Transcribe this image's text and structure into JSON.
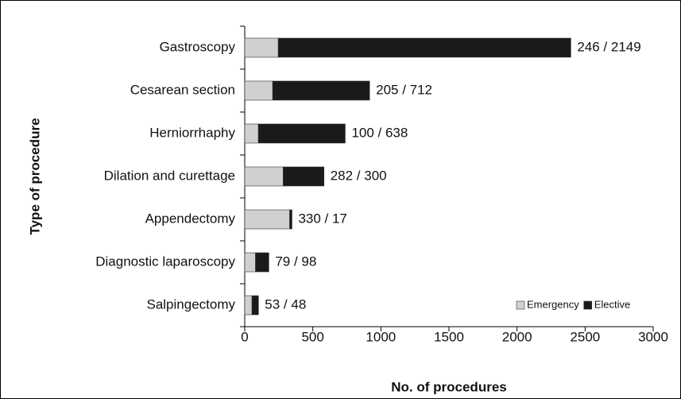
{
  "chart_data": {
    "type": "bar",
    "orientation": "horizontal",
    "stacked": true,
    "x_label": "No. of procedures",
    "y_label": "Type of procedure",
    "categories": [
      "Gastroscopy",
      "Cesarean section",
      "Herniorrhaphy",
      "Dilation and curettage",
      "Appendectomy",
      "Diagnostic laparoscopy",
      "Salpingectomy"
    ],
    "series": [
      {
        "name": "Emergency",
        "color": "#d0d0d0",
        "values": [
          246,
          205,
          100,
          282,
          330,
          79,
          53
        ]
      },
      {
        "name": "Elective",
        "color": "#1a1a1a",
        "values": [
          2149,
          712,
          638,
          300,
          17,
          98,
          48
        ]
      }
    ],
    "value_labels": [
      "246 / 2149",
      "205 / 712",
      "100 / 638",
      "282 / 300",
      "330 / 17",
      "79 / 98",
      "53 / 48"
    ],
    "xlim": [
      0,
      3000
    ],
    "xticks": [
      0,
      500,
      1000,
      1500,
      2000,
      2500,
      3000
    ],
    "legend": "lower right"
  }
}
